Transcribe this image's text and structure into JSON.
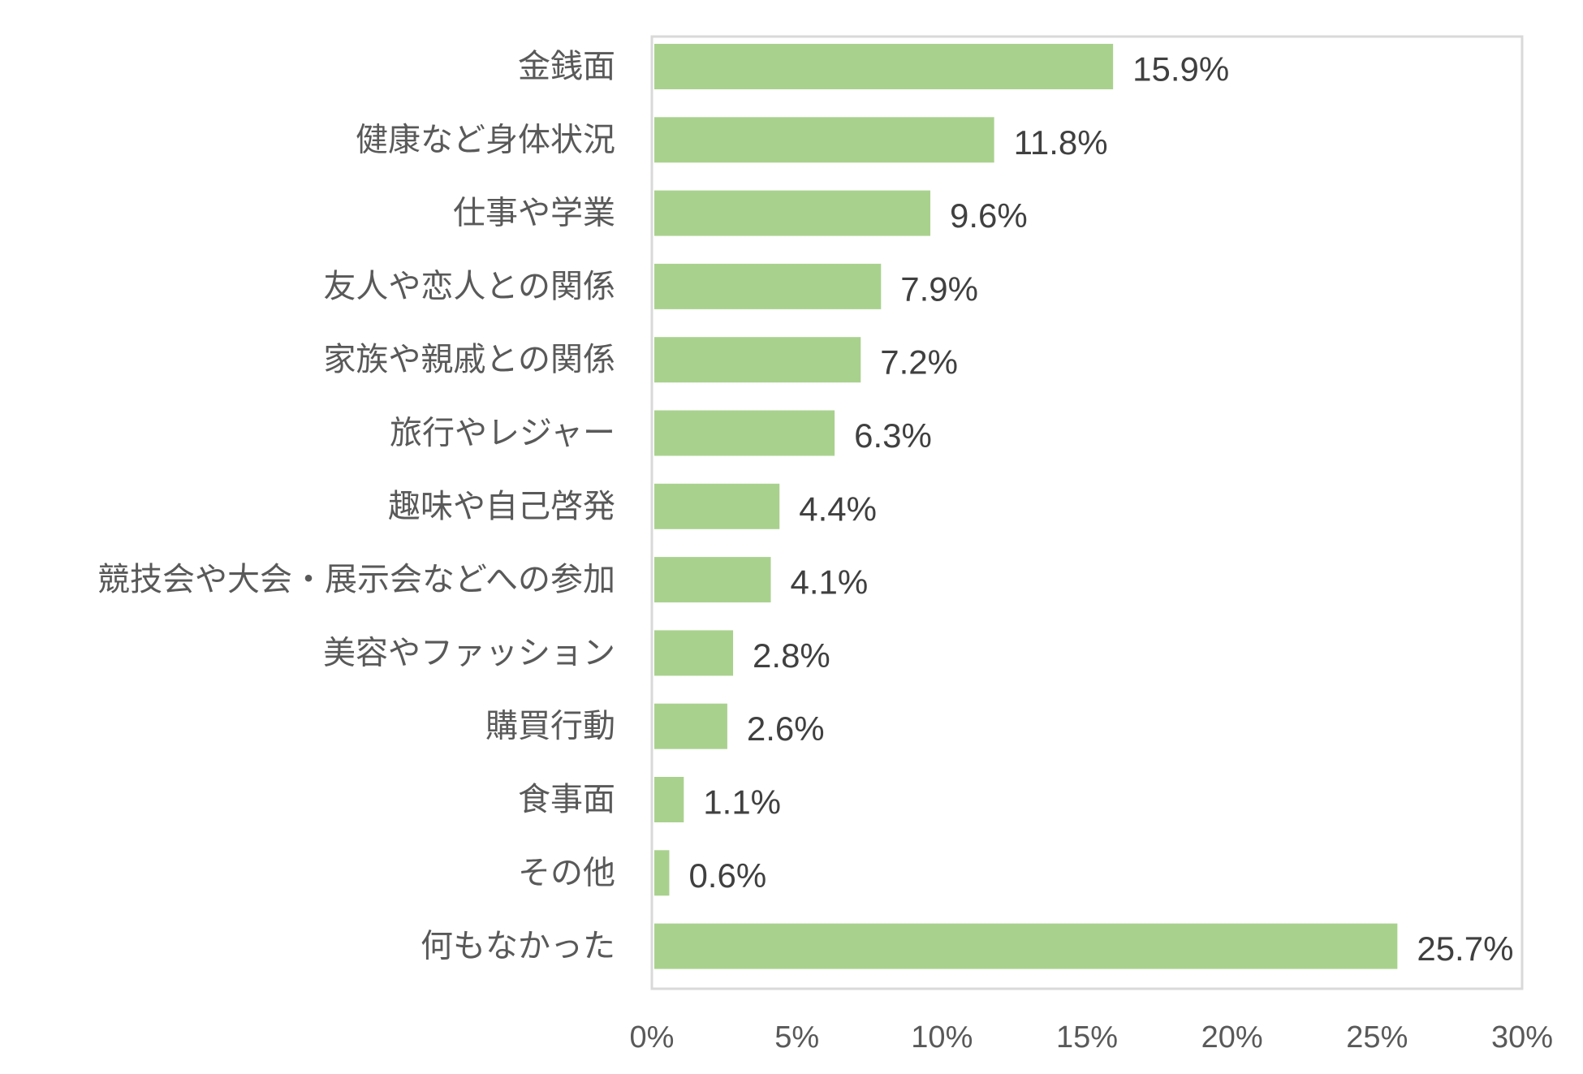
{
  "chart_data": {
    "type": "bar",
    "orientation": "horizontal",
    "categories": [
      "金銭面",
      "健康など身体状況",
      "仕事や学業",
      "友人や恋人との関係",
      "家族や親戚との関係",
      "旅行やレジャー",
      "趣味や自己啓発",
      "競技会や大会・展示会などへの参加",
      "美容やファッション",
      "購買行動",
      "食事面",
      "その他",
      "何もなかった"
    ],
    "values": [
      15.9,
      11.8,
      9.6,
      7.9,
      7.2,
      6.3,
      4.4,
      4.1,
      2.8,
      2.6,
      1.1,
      0.6,
      25.7
    ],
    "value_labels": [
      "15.9%",
      "11.8%",
      "9.6%",
      "7.9%",
      "7.2%",
      "6.3%",
      "4.4%",
      "4.1%",
      "2.8%",
      "2.6%",
      "1.1%",
      "0.6%",
      "25.7%"
    ],
    "xlim": [
      0,
      30
    ],
    "xticks": [
      0,
      5,
      10,
      15,
      20,
      25,
      30
    ],
    "xtick_labels": [
      "0%",
      "5%",
      "10%",
      "15%",
      "20%",
      "25%",
      "30%"
    ],
    "bar_color": "#a9d18e",
    "frame_color": "#d9d9d9",
    "grid": false,
    "legend": "none"
  }
}
